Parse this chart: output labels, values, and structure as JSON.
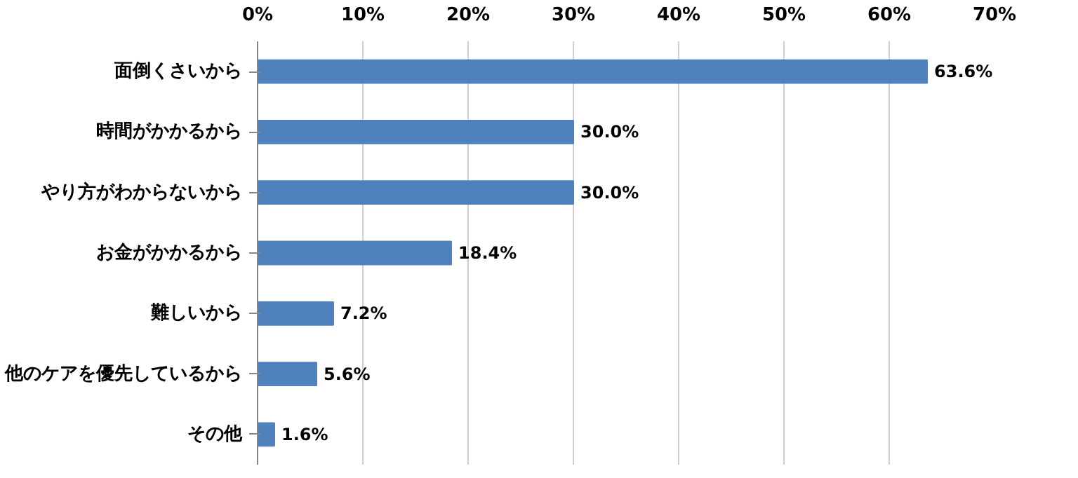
{
  "chart_data": {
    "type": "bar",
    "orientation": "horizontal",
    "categories": [
      "面倒くさいから",
      "時間がかかるから",
      "やり方がわからないから",
      "お金がかかるから",
      "難しいから",
      "他のケアを優先しているから",
      "その他"
    ],
    "values": [
      63.6,
      30.0,
      30.0,
      18.4,
      7.2,
      5.6,
      1.6
    ],
    "value_labels": [
      "63.6%",
      "30.0%",
      "30.0%",
      "18.4%",
      "7.2%",
      "5.6%",
      "1.6%"
    ],
    "color": "#4f81bd",
    "xlim": [
      0,
      70
    ],
    "xticks": [
      {
        "value": 0,
        "label": "0%"
      },
      {
        "value": 10,
        "label": "10%"
      },
      {
        "value": 20,
        "label": "20%"
      },
      {
        "value": 30,
        "label": "30%"
      },
      {
        "value": 40,
        "label": "40%"
      },
      {
        "value": 50,
        "label": "50%"
      },
      {
        "value": 60,
        "label": "60%"
      },
      {
        "value": 70,
        "label": "70%"
      }
    ],
    "grid": "x"
  }
}
